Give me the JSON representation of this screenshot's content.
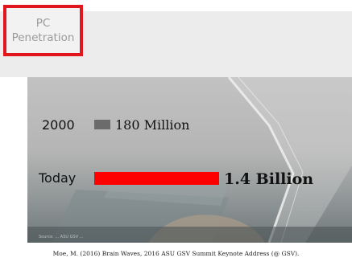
{
  "slide": {
    "title_line1": "PC",
    "title_line2": "Penetration",
    "source_overlay": "Source: ... ASU GSV ...",
    "caption": "Moe, M. (2016) Brain Waves, 2016 ASU GSV Summit Keynote Address (@ GSV)."
  },
  "colors": {
    "title_border": "#e2171d",
    "bar_2000": "#6b6b6b",
    "bar_today": "#ff0000"
  },
  "chart_data": {
    "type": "bar",
    "orientation": "horizontal",
    "categories": [
      "2000",
      "Today"
    ],
    "values": [
      180,
      1400
    ],
    "unit": "Million",
    "data_labels": [
      "180 Million",
      "1.4 Billion"
    ],
    "title": "",
    "xlabel": "",
    "ylabel": "",
    "grid": false,
    "legend": false
  }
}
